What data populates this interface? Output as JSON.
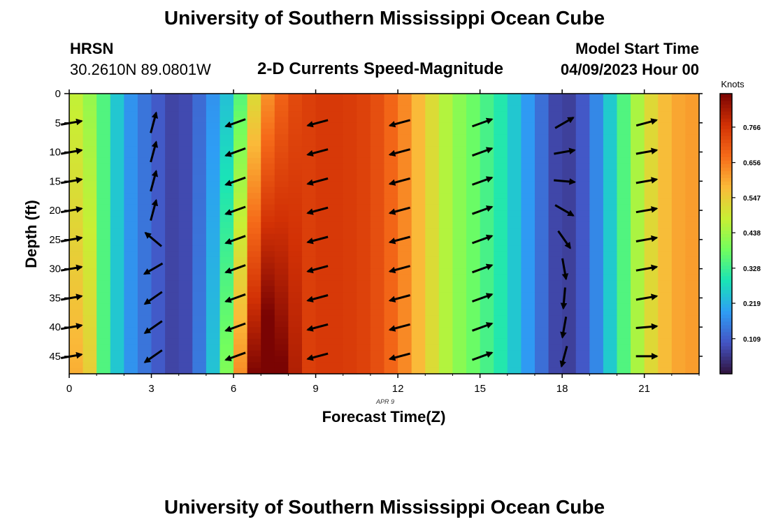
{
  "page": {
    "title": "University of Southern Mississippi Ocean Cube",
    "station_name": "HRSN",
    "station_coords": "30.2610N  89.0801W",
    "chart_title": "2-D Currents Speed-Magnitude",
    "model_start_label": "Model Start Time",
    "model_start_value": "04/09/2023 Hour 00",
    "footer_title": "University of Southern Mississippi Ocean Cube"
  },
  "chart_data": {
    "type": "heatmap",
    "title": "2-D Currents Speed-Magnitude",
    "xlabel": "Forecast Time(Z)",
    "ylabel": "Depth (ft)",
    "x_sublabel": "APR 9",
    "xlim": [
      0,
      23
    ],
    "ylim": [
      0,
      48
    ],
    "y_inverted": true,
    "x_ticks": [
      0,
      3,
      6,
      9,
      12,
      15,
      18,
      21
    ],
    "y_ticks": [
      0,
      5,
      10,
      15,
      20,
      25,
      30,
      35,
      40,
      45
    ],
    "colorbar": {
      "label": "Knots",
      "ticks": [
        "0.109",
        "0.219",
        "0.328",
        "0.438",
        "0.547",
        "0.656",
        "0.766"
      ],
      "range": [
        0.0,
        0.87
      ]
    },
    "colormap": [
      "#30123b",
      "#4454c4",
      "#2e9df5",
      "#1ae4b6",
      "#72fe5e",
      "#c8ef34",
      "#faba39",
      "#f66b19",
      "#d23105",
      "#7a0403"
    ],
    "speed_profile_hours": [
      0,
      1,
      2,
      3,
      4,
      5,
      6,
      7,
      8,
      9,
      10,
      11,
      12,
      13,
      14,
      15,
      16,
      17,
      18,
      19,
      20,
      21,
      22,
      23
    ],
    "speed_profile_knots": [
      0.5,
      0.4,
      0.2,
      0.12,
      0.06,
      0.15,
      0.27,
      0.6,
      0.72,
      0.76,
      0.76,
      0.74,
      0.67,
      0.55,
      0.43,
      0.36,
      0.28,
      0.16,
      0.05,
      0.12,
      0.3,
      0.5,
      0.6,
      0.62
    ],
    "vector_hours": [
      0,
      3,
      6,
      9,
      12,
      15,
      18,
      21
    ],
    "vector_depths": [
      5,
      10,
      15,
      20,
      25,
      30,
      35,
      40,
      45
    ],
    "vectors_direction_deg": [
      [
        80,
        80,
        80,
        80,
        80,
        80,
        80,
        80,
        80
      ],
      [
        15,
        15,
        15,
        15,
        310,
        240,
        235,
        235,
        235
      ],
      [
        250,
        250,
        250,
        250,
        250,
        250,
        250,
        250,
        250
      ],
      [
        255,
        255,
        255,
        255,
        255,
        255,
        255,
        255,
        255
      ],
      [
        255,
        255,
        255,
        255,
        255,
        255,
        255,
        255,
        255
      ],
      [
        70,
        70,
        70,
        70,
        70,
        70,
        70,
        70,
        70
      ],
      [
        60,
        80,
        95,
        120,
        145,
        170,
        185,
        190,
        195
      ],
      [
        75,
        80,
        80,
        80,
        80,
        80,
        80,
        85,
        90
      ]
    ]
  }
}
